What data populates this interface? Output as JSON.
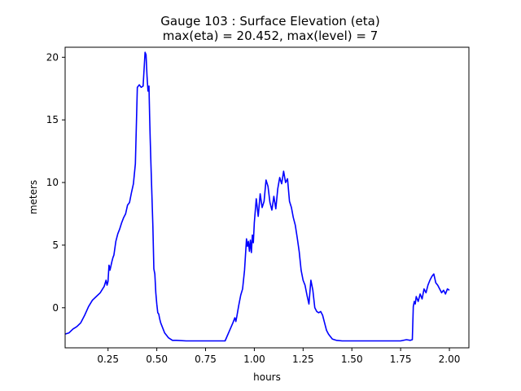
{
  "chart_data": {
    "type": "line",
    "title": "Gauge 103 : Surface Elevation (eta)",
    "subtitle": "max(eta) =  20.452,    max(level) = 7",
    "xlabel": "hours",
    "ylabel": "meters",
    "xlim": [
      0.03,
      2.1
    ],
    "ylim": [
      -3.2,
      20.8
    ],
    "grid": false,
    "xticks": [
      0.25,
      0.5,
      0.75,
      1.0,
      1.25,
      1.5,
      1.75,
      2.0
    ],
    "xtick_labels": [
      "0.25",
      "0.50",
      "0.75",
      "1.00",
      "1.25",
      "1.50",
      "1.75",
      "2.00"
    ],
    "yticks": [
      0,
      5,
      10,
      15,
      20
    ],
    "ytick_labels": [
      "0",
      "5",
      "10",
      "15",
      "20"
    ],
    "series": [
      {
        "color": "#0000ff",
        "x": [
          0.03,
          0.05,
          0.07,
          0.09,
          0.11,
          0.13,
          0.15,
          0.17,
          0.19,
          0.21,
          0.23,
          0.24,
          0.245,
          0.25,
          0.255,
          0.26,
          0.27,
          0.275,
          0.28,
          0.29,
          0.3,
          0.31,
          0.32,
          0.33,
          0.34,
          0.35,
          0.36,
          0.37,
          0.38,
          0.39,
          0.4,
          0.41,
          0.42,
          0.43,
          0.44,
          0.445,
          0.45,
          0.455,
          0.46,
          0.463,
          0.466,
          0.47,
          0.475,
          0.48,
          0.485,
          0.49,
          0.495,
          0.5,
          0.505,
          0.51,
          0.515,
          0.52,
          0.53,
          0.54,
          0.55,
          0.56,
          0.58,
          0.6,
          0.65,
          0.7,
          0.75,
          0.8,
          0.85,
          0.89,
          0.9,
          0.905,
          0.91,
          0.92,
          0.93,
          0.94,
          0.95,
          0.96,
          0.965,
          0.97,
          0.975,
          0.98,
          0.985,
          0.99,
          0.995,
          1.0,
          1.01,
          1.02,
          1.03,
          1.04,
          1.05,
          1.06,
          1.07,
          1.08,
          1.09,
          1.1,
          1.11,
          1.12,
          1.13,
          1.14,
          1.15,
          1.16,
          1.17,
          1.18,
          1.19,
          1.2,
          1.21,
          1.22,
          1.23,
          1.24,
          1.25,
          1.26,
          1.27,
          1.28,
          1.29,
          1.3,
          1.31,
          1.32,
          1.33,
          1.34,
          1.35,
          1.36,
          1.37,
          1.38,
          1.39,
          1.4,
          1.42,
          1.45,
          1.5,
          1.55,
          1.6,
          1.65,
          1.7,
          1.75,
          1.78,
          1.8,
          1.81,
          1.815,
          1.82,
          1.825,
          1.83,
          1.84,
          1.85,
          1.86,
          1.87,
          1.88,
          1.89,
          1.9,
          1.91,
          1.92,
          1.93,
          1.94,
          1.95,
          1.96,
          1.97,
          1.98,
          1.99,
          2.0
        ],
        "y": [
          -2.1,
          -2.0,
          -1.7,
          -1.5,
          -1.2,
          -0.6,
          0.1,
          0.6,
          0.9,
          1.2,
          1.7,
          2.2,
          1.8,
          2.1,
          3.4,
          3.0,
          3.7,
          4.0,
          4.2,
          5.3,
          5.9,
          6.3,
          6.8,
          7.2,
          7.5,
          8.2,
          8.4,
          9.2,
          9.9,
          11.5,
          17.6,
          17.8,
          17.6,
          17.7,
          20.4,
          20.2,
          18.5,
          17.3,
          17.7,
          15.3,
          13.5,
          11.5,
          9.0,
          6.5,
          3.1,
          2.7,
          1.2,
          0.3,
          -0.4,
          -0.5,
          -0.9,
          -1.2,
          -1.6,
          -2.0,
          -2.2,
          -2.4,
          -2.6,
          -2.6,
          -2.65,
          -2.65,
          -2.65,
          -2.65,
          -2.65,
          -1.2,
          -0.8,
          -1.1,
          -0.7,
          0.2,
          1.0,
          1.5,
          3.0,
          5.5,
          4.9,
          5.3,
          4.5,
          5.4,
          4.4,
          5.8,
          5.2,
          6.8,
          8.7,
          7.3,
          9.1,
          8.0,
          8.5,
          10.2,
          9.7,
          8.4,
          7.8,
          8.9,
          7.9,
          9.5,
          10.4,
          9.9,
          10.9,
          10.0,
          10.3,
          8.5,
          8.0,
          7.2,
          6.6,
          5.6,
          4.5,
          3.0,
          2.2,
          1.8,
          1.0,
          0.3,
          2.2,
          1.4,
          0.0,
          -0.3,
          -0.4,
          -0.3,
          -0.6,
          -1.2,
          -1.8,
          -2.1,
          -2.3,
          -2.5,
          -2.6,
          -2.65,
          -2.65,
          -2.65,
          -2.65,
          -2.65,
          -2.65,
          -2.65,
          -2.55,
          -2.6,
          -2.55,
          0.1,
          0.5,
          0.3,
          0.9,
          0.5,
          1.1,
          0.7,
          1.5,
          1.2,
          1.8,
          2.2,
          2.5,
          2.7,
          2.0,
          1.8,
          1.5,
          1.2,
          1.4,
          1.1,
          1.5,
          1.4
        ]
      }
    ]
  }
}
